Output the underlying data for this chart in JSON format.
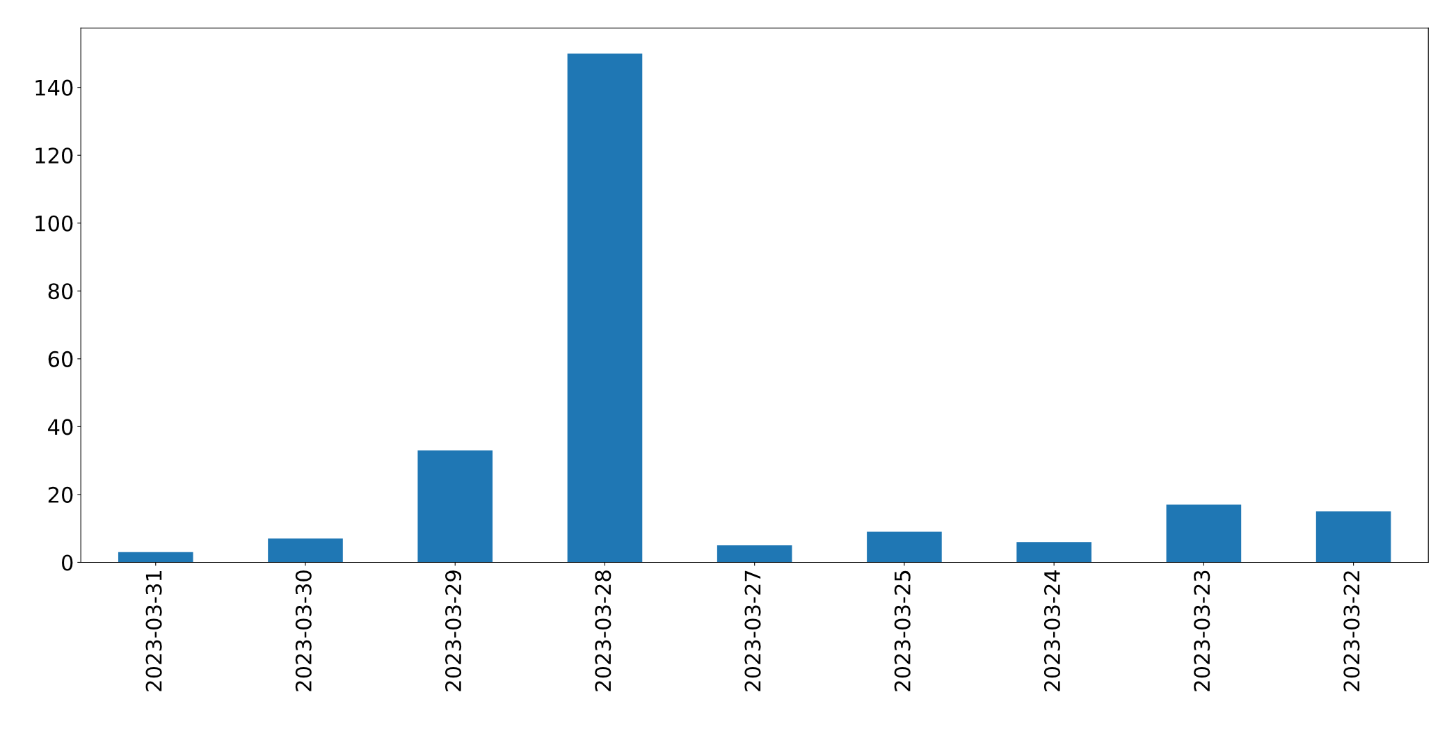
{
  "chart_data": {
    "type": "bar",
    "categories": [
      "2023-03-31",
      "2023-03-30",
      "2023-03-29",
      "2023-03-28",
      "2023-03-27",
      "2023-03-25",
      "2023-03-24",
      "2023-03-23",
      "2023-03-22"
    ],
    "values": [
      3,
      7,
      33,
      150,
      5,
      9,
      6,
      17,
      15
    ],
    "color": "#1f77b4",
    "ylim": [
      0,
      157.5
    ],
    "yticks": [
      0,
      20,
      40,
      60,
      80,
      100,
      120,
      140
    ],
    "grid": false,
    "legend": false
  }
}
